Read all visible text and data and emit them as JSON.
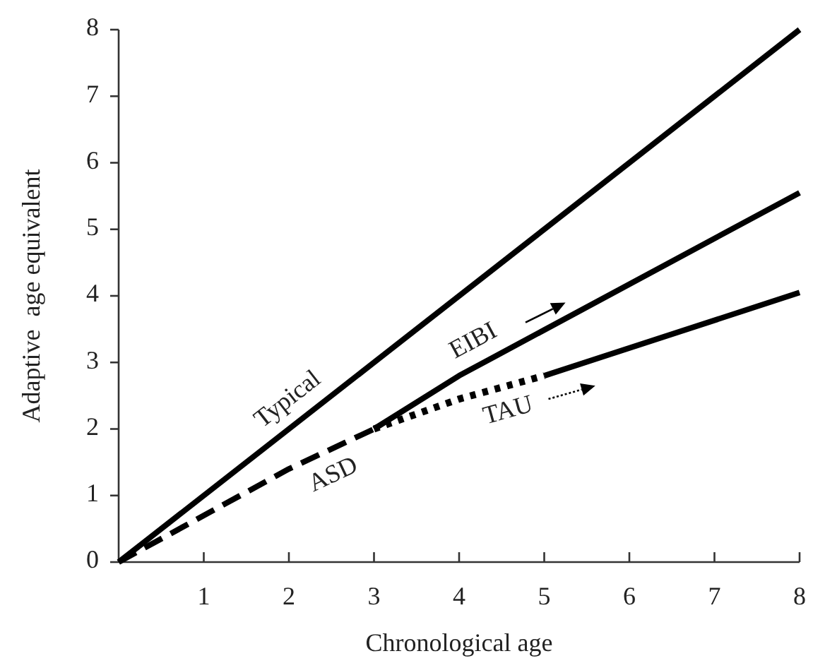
{
  "chart_data": {
    "type": "line",
    "xlabel": "Chronological age",
    "ylabel": "Adaptive  age equivalent",
    "xlim": [
      0,
      8
    ],
    "ylim": [
      0,
      8
    ],
    "xticks": [
      1,
      2,
      3,
      4,
      5,
      6,
      7,
      8
    ],
    "yticks": [
      0,
      1,
      2,
      3,
      4,
      5,
      6,
      7,
      8
    ],
    "grid": false,
    "marker": "none",
    "series": [
      {
        "name": "Typical",
        "color": "#000000",
        "line_style": "solid",
        "x": [
          0,
          8
        ],
        "values": [
          0,
          8
        ]
      },
      {
        "name": "ASD",
        "color": "#000000",
        "line_style": "dashed",
        "x": [
          0,
          2,
          3
        ],
        "values": [
          0,
          1.4,
          2
        ]
      },
      {
        "name": "EIBI",
        "color": "#000000",
        "line_style": "solid",
        "x": [
          3,
          4,
          8
        ],
        "values": [
          2,
          2.8,
          5.55
        ]
      },
      {
        "name": "TAU",
        "color": "#000000",
        "line_style": "dotted",
        "x": [
          3,
          4,
          5
        ],
        "values": [
          2,
          2.45,
          2.8
        ]
      },
      {
        "color": "#000000",
        "line_style": "solid",
        "x": [
          5,
          8
        ],
        "values": [
          2.8,
          4.05
        ]
      }
    ]
  }
}
